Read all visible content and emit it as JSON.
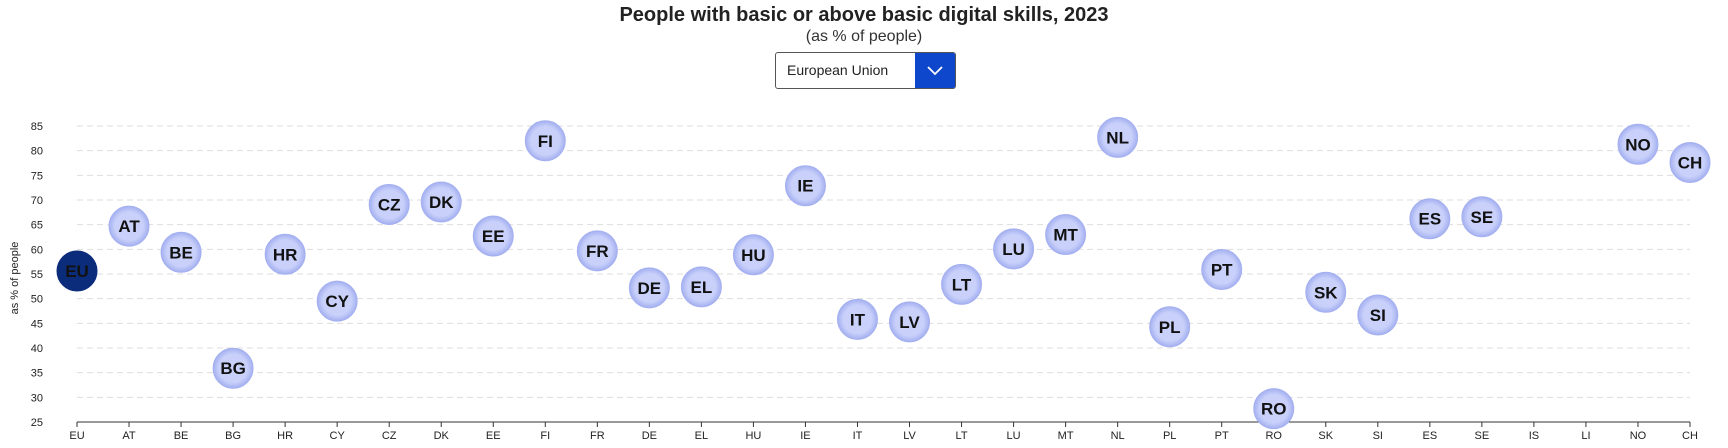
{
  "header": {
    "title": "People with basic or above basic digital skills, 2023",
    "subtitle": "(as % of people)"
  },
  "selector": {
    "selected": "European Union",
    "icon": "chevron-down-icon"
  },
  "colors": {
    "highlight": "#0b2c7a",
    "bubble": "#a4b0f0",
    "bubble_edge": "#c9d1fa",
    "grid": "#dddddd",
    "accent": "#0e47cb"
  },
  "chart_data": {
    "type": "scatter",
    "title": "People with basic or above basic digital skills, 2023",
    "subtitle": "(as % of people)",
    "ylabel": "as % of people",
    "xlabel": "",
    "ylim": [
      25,
      85
    ],
    "yticks": [
      25,
      30,
      35,
      40,
      45,
      50,
      55,
      60,
      65,
      70,
      75,
      80,
      85
    ],
    "grid": true,
    "highlight": "EU",
    "categories": [
      "EU",
      "AT",
      "BE",
      "BG",
      "HR",
      "CY",
      "CZ",
      "DK",
      "EE",
      "FI",
      "FR",
      "DE",
      "EL",
      "HU",
      "IE",
      "IT",
      "LV",
      "LT",
      "LU",
      "MT",
      "NL",
      "PL",
      "PT",
      "RO",
      "SK",
      "SI",
      "ES",
      "SE",
      "IS",
      "LI",
      "NO",
      "CH"
    ],
    "values": [
      55.6,
      64.7,
      59.4,
      35.9,
      59.0,
      49.5,
      69.1,
      69.6,
      62.7,
      82.0,
      59.7,
      52.2,
      52.4,
      58.9,
      72.9,
      45.8,
      45.3,
      52.9,
      60.1,
      63.0,
      82.7,
      44.3,
      55.9,
      27.7,
      51.3,
      46.7,
      66.2,
      66.6,
      null,
      null,
      81.3,
      77.6
    ]
  }
}
